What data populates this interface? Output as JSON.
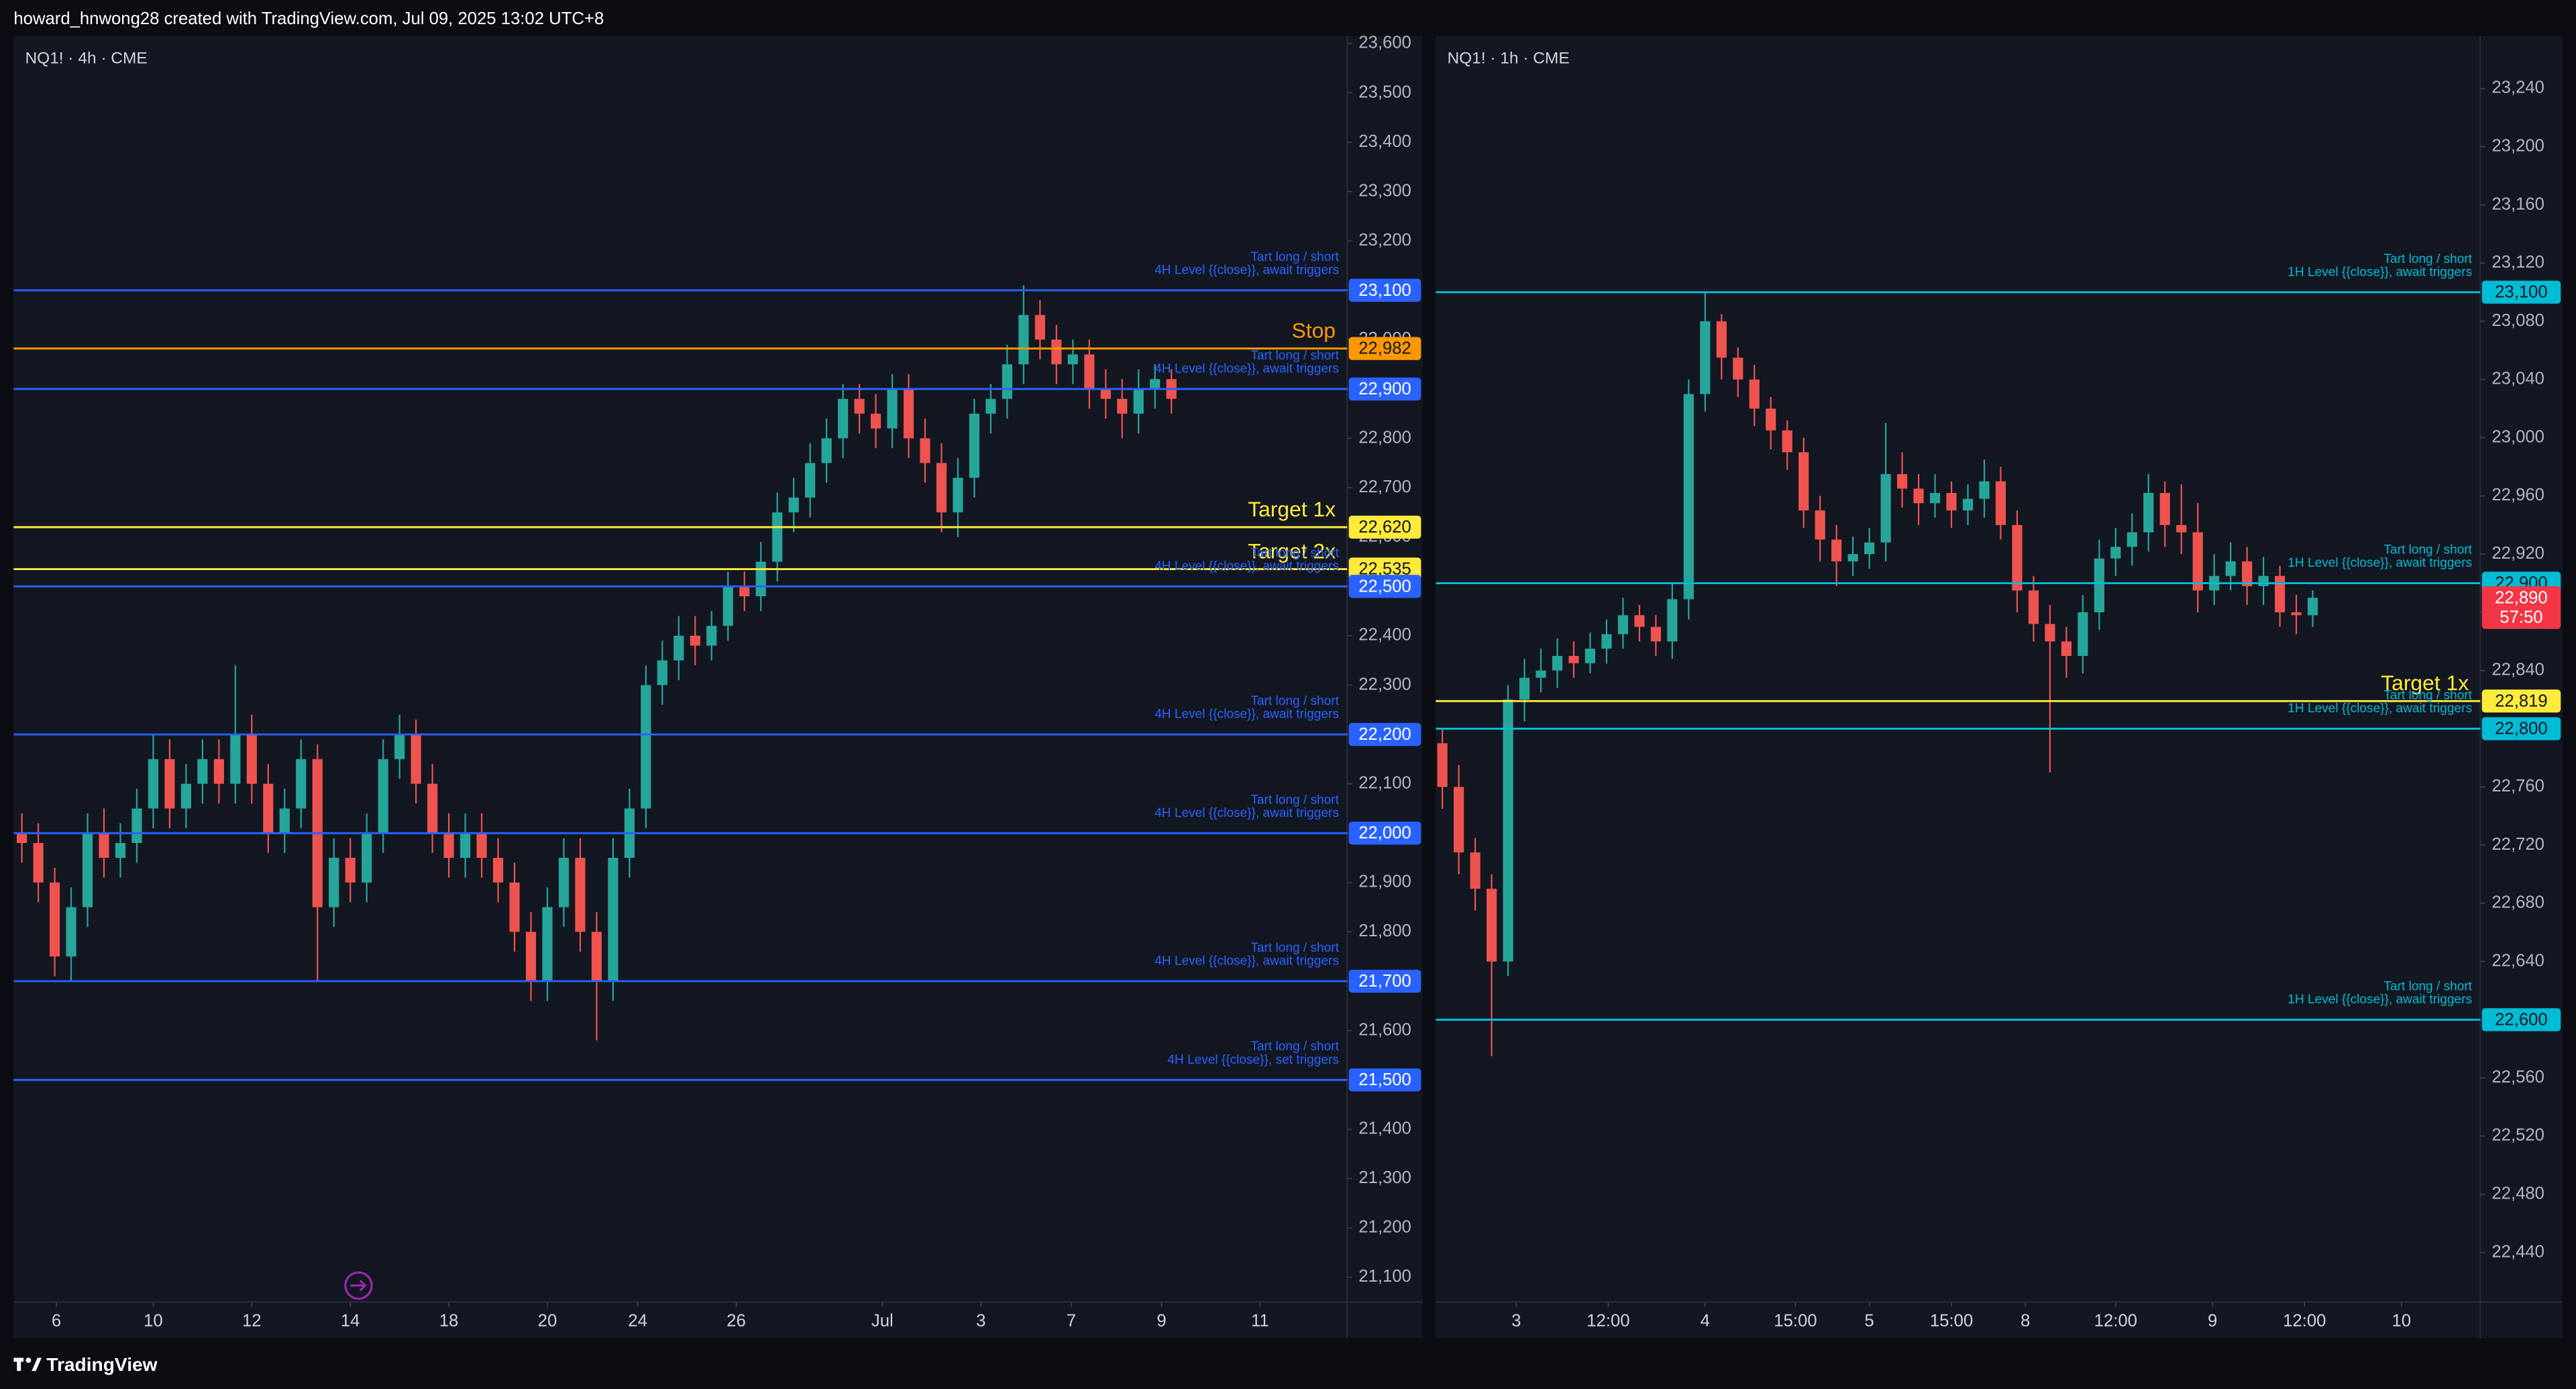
{
  "header": {
    "title": "howard_hnwong28 created with TradingView.com, Jul 09, 2025 13:02 UTC+8"
  },
  "footer": {
    "brand": "TradingView"
  },
  "chart_data": [
    {
      "type": "candlestick",
      "title": "NQ1! · 4h · CME",
      "up_color": "#26a69a",
      "down_color": "#ef5350",
      "ylim": [
        21050,
        23615
      ],
      "yticks": [
        {
          "value": 21100,
          "label": "21,100"
        },
        {
          "value": 21200,
          "label": "21,200"
        },
        {
          "value": 21300,
          "label": "21,300"
        },
        {
          "value": 21400,
          "label": "21,400"
        },
        {
          "value": 21500,
          "label": "21,500"
        },
        {
          "value": 21600,
          "label": "21,600"
        },
        {
          "value": 21700,
          "label": "21,700"
        },
        {
          "value": 21800,
          "label": "21,800"
        },
        {
          "value": 21900,
          "label": "21,900"
        },
        {
          "value": 22000,
          "label": "22,000"
        },
        {
          "value": 22100,
          "label": "22,100"
        },
        {
          "value": 22200,
          "label": "22,200"
        },
        {
          "value": 22300,
          "label": "22,300"
        },
        {
          "value": 22400,
          "label": "22,400"
        },
        {
          "value": 22500,
          "label": "22,500"
        },
        {
          "value": 22600,
          "label": "22,600"
        },
        {
          "value": 22700,
          "label": "22,700"
        },
        {
          "value": 22800,
          "label": "22,800"
        },
        {
          "value": 22900,
          "label": "22,900"
        },
        {
          "value": 23000,
          "label": "23,000"
        },
        {
          "value": 23100,
          "label": "23,100"
        },
        {
          "value": 23200,
          "label": "23,200"
        },
        {
          "value": 23300,
          "label": "23,300"
        },
        {
          "value": 23400,
          "label": "23,400"
        },
        {
          "value": 23500,
          "label": "23,500"
        },
        {
          "value": 23600,
          "label": "23,600"
        }
      ],
      "xlim": [
        -0.5,
        80.7
      ],
      "xticks": [
        {
          "value": 2.1,
          "label": "6"
        },
        {
          "value": 8,
          "label": "10"
        },
        {
          "value": 14,
          "label": "12"
        },
        {
          "value": 20,
          "label": "14"
        },
        {
          "value": 26,
          "label": "18"
        },
        {
          "value": 32,
          "label": "20"
        },
        {
          "value": 37.5,
          "label": "24"
        },
        {
          "value": 43.5,
          "label": "26"
        },
        {
          "value": 52.4,
          "label": "Jul"
        },
        {
          "value": 58.4,
          "label": "3"
        },
        {
          "value": 63.9,
          "label": "7"
        },
        {
          "value": 69.4,
          "label": "9"
        },
        {
          "value": 75.4,
          "label": "11"
        }
      ],
      "open": [
        22000,
        21980,
        21900,
        21750,
        21850,
        22000,
        21950,
        21980,
        22050,
        22150,
        22050,
        22100,
        22150,
        22100,
        22200,
        22100,
        22000,
        22050,
        22150,
        21850,
        21950,
        21900,
        22000,
        22150,
        22200,
        22100,
        22000,
        21950,
        22000,
        21950,
        21900,
        21800,
        21700,
        21850,
        21950,
        21800,
        21700,
        21950,
        22050,
        22300,
        22350,
        22400,
        22380,
        22420,
        22500,
        22480,
        22550,
        22650,
        22680,
        22750,
        22800,
        22880,
        22850,
        22820,
        22900,
        22800,
        22750,
        22650,
        22720,
        22850,
        22880,
        22950,
        23050,
        23000,
        22950,
        22970,
        22900,
        22880,
        22850,
        22900,
        22920
      ],
      "high": [
        22040,
        22020,
        21930,
        21890,
        22040,
        22050,
        22020,
        22090,
        22200,
        22190,
        22140,
        22190,
        22190,
        22340,
        22240,
        22140,
        22090,
        22190,
        22180,
        21990,
        21990,
        22040,
        22190,
        22240,
        22230,
        22140,
        22040,
        22040,
        22040,
        21990,
        21940,
        21840,
        21890,
        21990,
        21990,
        21840,
        21990,
        22090,
        22340,
        22390,
        22440,
        22440,
        22450,
        22530,
        22530,
        22590,
        22690,
        22720,
        22790,
        22840,
        22910,
        22910,
        22890,
        22930,
        22930,
        22840,
        22790,
        22760,
        22880,
        22910,
        22990,
        23110,
        23080,
        23030,
        23000,
        23000,
        22940,
        22920,
        22940,
        22950,
        22940
      ],
      "low": [
        21940,
        21860,
        21710,
        21700,
        21810,
        21910,
        21910,
        21940,
        22010,
        22010,
        22010,
        22060,
        22060,
        22060,
        22060,
        21960,
        21960,
        22010,
        21700,
        21810,
        21860,
        21860,
        21960,
        22110,
        22060,
        21960,
        21910,
        21910,
        21910,
        21860,
        21760,
        21660,
        21660,
        21810,
        21760,
        21580,
        21660,
        21910,
        22010,
        22260,
        22310,
        22340,
        22350,
        22390,
        22450,
        22450,
        22510,
        22610,
        22640,
        22710,
        22760,
        22810,
        22780,
        22780,
        22760,
        22710,
        22610,
        22600,
        22680,
        22810,
        22840,
        22910,
        22960,
        22910,
        22910,
        22860,
        22840,
        22800,
        22810,
        22860,
        22850
      ],
      "close": [
        21980,
        21900,
        21750,
        21850,
        22000,
        21950,
        21980,
        22050,
        22150,
        22050,
        22100,
        22150,
        22100,
        22200,
        22100,
        22000,
        22050,
        22150,
        21850,
        21950,
        21900,
        22000,
        22150,
        22200,
        22100,
        22000,
        21950,
        22000,
        21950,
        21900,
        21800,
        21700,
        21850,
        21950,
        21800,
        21700,
        21950,
        22050,
        22300,
        22350,
        22400,
        22380,
        22420,
        22500,
        22480,
        22550,
        22650,
        22680,
        22750,
        22800,
        22880,
        22850,
        22820,
        22900,
        22800,
        22750,
        22650,
        22720,
        22850,
        22880,
        22950,
        23050,
        23000,
        22950,
        22970,
        22900,
        22880,
        22850,
        22900,
        22920,
        22880
      ],
      "levels": [
        {
          "value": 23100,
          "label": "23,100",
          "color": "#2962ff",
          "text": [
            "Tart long / short",
            "4H Level {{close}}, await triggers"
          ]
        },
        {
          "value": 22982,
          "label": "22,982",
          "color": "#ff9800",
          "name": "Stop"
        },
        {
          "value": 22900,
          "label": "22,900",
          "color": "#2962ff",
          "text": [
            "Tart long / short",
            "4H Level {{close}}, await triggers"
          ]
        },
        {
          "value": 22620,
          "label": "22,620",
          "color": "#ffeb3b",
          "name": "Target 1x"
        },
        {
          "value": 22535,
          "label": "22,535",
          "color": "#ffeb3b",
          "name": "Target 2x"
        },
        {
          "value": 22500,
          "label": "22,500",
          "color": "#2962ff",
          "text": [
            "Tart long / short",
            "4H Level {{close}}, await triggers"
          ]
        },
        {
          "value": 22200,
          "label": "22,200",
          "color": "#2962ff",
          "text": [
            "Tart long / short",
            "4H Level {{close}}, await triggers"
          ]
        },
        {
          "value": 22000,
          "label": "22,000",
          "color": "#2962ff",
          "text": [
            "Tart long / short",
            "4H Level {{close}}, await triggers"
          ]
        },
        {
          "value": 21700,
          "label": "21,700",
          "color": "#2962ff",
          "text": [
            "Tart long / short",
            "4H Level {{close}}, await triggers"
          ]
        },
        {
          "value": 21500,
          "label": "21,500",
          "color": "#2962ff",
          "text": [
            "Tart long / short",
            "4H Level {{close}}, set triggers"
          ]
        }
      ]
    },
    {
      "type": "candlestick",
      "title": "NQ1! · 1h · CME",
      "up_color": "#26a69a",
      "down_color": "#ef5350",
      "ylim": [
        22406,
        23276
      ],
      "yticks": [
        {
          "value": 22440,
          "label": "22,440"
        },
        {
          "value": 22480,
          "label": "22,480"
        },
        {
          "value": 22520,
          "label": "22,520"
        },
        {
          "value": 22560,
          "label": "22,560"
        },
        {
          "value": 22600,
          "label": "22,600"
        },
        {
          "value": 22640,
          "label": "22,640"
        },
        {
          "value": 22680,
          "label": "22,680"
        },
        {
          "value": 22720,
          "label": "22,720"
        },
        {
          "value": 22760,
          "label": "22,760"
        },
        {
          "value": 22800,
          "label": "22,800"
        },
        {
          "value": 22840,
          "label": "22,840"
        },
        {
          "value": 22880,
          "label": "22,880"
        },
        {
          "value": 22920,
          "label": "22,920"
        },
        {
          "value": 22960,
          "label": "22,960"
        },
        {
          "value": 23000,
          "label": "23,000"
        },
        {
          "value": 23040,
          "label": "23,040"
        },
        {
          "value": 23080,
          "label": "23,080"
        },
        {
          "value": 23120,
          "label": "23,120"
        },
        {
          "value": 23160,
          "label": "23,160"
        },
        {
          "value": 23200,
          "label": "23,200"
        },
        {
          "value": 23240,
          "label": "23,240"
        }
      ],
      "xlim": [
        -0.4,
        63.2
      ],
      "xticks": [
        {
          "value": 4.5,
          "label": "3"
        },
        {
          "value": 10.1,
          "label": "12:00"
        },
        {
          "value": 16,
          "label": "4"
        },
        {
          "value": 21.5,
          "label": "15:00"
        },
        {
          "value": 26,
          "label": "5"
        },
        {
          "value": 31,
          "label": "15:00"
        },
        {
          "value": 35.5,
          "label": "8"
        },
        {
          "value": 41,
          "label": "12:00"
        },
        {
          "value": 46.9,
          "label": "9"
        },
        {
          "value": 52.5,
          "label": "12:00"
        },
        {
          "value": 58.4,
          "label": "10"
        }
      ],
      "open": [
        22790,
        22760,
        22715,
        22690,
        22640,
        22820,
        22835,
        22840,
        22850,
        22845,
        22855,
        22865,
        22878,
        22870,
        22860,
        22889,
        23030,
        23080,
        23055,
        23040,
        23020,
        23005,
        22990,
        22950,
        22930,
        22915,
        22920,
        22928,
        22975,
        22965,
        22955,
        22962,
        22950,
        22958,
        22970,
        22940,
        22895,
        22872,
        22860,
        22850,
        22880,
        22917,
        22925,
        22935,
        22962,
        22940,
        22935,
        22895,
        22905,
        22915,
        22898,
        22905,
        22880,
        22878
      ],
      "high": [
        22800,
        22775,
        22725,
        22700,
        22830,
        22848,
        22855,
        22862,
        22860,
        22866,
        22875,
        22890,
        22885,
        22878,
        22900,
        23040,
        23100,
        23085,
        23062,
        23050,
        23028,
        23012,
        23000,
        22960,
        22940,
        22932,
        22938,
        23010,
        22990,
        22975,
        22975,
        22970,
        22968,
        22985,
        22980,
        22950,
        22905,
        22885,
        22870,
        22892,
        22930,
        22938,
        22948,
        22975,
        22970,
        22968,
        22955,
        22920,
        22928,
        22925,
        22918,
        22912,
        22892,
        22895
      ],
      "low": [
        22745,
        22700,
        22675,
        22575,
        22630,
        22805,
        22825,
        22828,
        22835,
        22838,
        22845,
        22855,
        22860,
        22850,
        22848,
        22875,
        23018,
        23040,
        23028,
        23008,
        22992,
        22978,
        22938,
        22915,
        22898,
        22905,
        22910,
        22915,
        22952,
        22940,
        22945,
        22938,
        22940,
        22945,
        22930,
        22880,
        22860,
        22770,
        22835,
        22838,
        22868,
        22905,
        22912,
        22922,
        22925,
        22920,
        22880,
        22885,
        22895,
        22885,
        22885,
        22870,
        22865,
        22870
      ],
      "close": [
        22760,
        22715,
        22690,
        22640,
        22820,
        22835,
        22840,
        22850,
        22845,
        22855,
        22865,
        22878,
        22870,
        22860,
        22889,
        23030,
        23080,
        23055,
        23040,
        23020,
        23005,
        22990,
        22950,
        22930,
        22915,
        22920,
        22928,
        22975,
        22965,
        22955,
        22962,
        22950,
        22958,
        22970,
        22940,
        22895,
        22872,
        22860,
        22850,
        22880,
        22917,
        22925,
        22935,
        22962,
        22940,
        22935,
        22895,
        22905,
        22915,
        22898,
        22905,
        22880,
        22878,
        22890
      ],
      "levels": [
        {
          "value": 23100,
          "label": "23,100",
          "color": "#00bcd4",
          "text": [
            "Tart long / short",
            "1H Level {{close}}, await triggers"
          ]
        },
        {
          "value": 22900,
          "label": "22,900",
          "color": "#00bcd4",
          "text": [
            "Tart long / short",
            "1H Level {{close}}, await triggers"
          ]
        },
        {
          "value": 22819,
          "label": "22,819",
          "color": "#ffeb3b",
          "name": "Target 1x"
        },
        {
          "value": 22800,
          "label": "22,800",
          "color": "#00bcd4",
          "text": [
            "Tart long / short",
            "1H Level {{close}}, await triggers"
          ]
        },
        {
          "value": 22600,
          "label": "22,600",
          "color": "#00bcd4",
          "text": [
            "Tart long / short",
            "1H Level {{close}}, await triggers"
          ]
        }
      ],
      "last_price": {
        "value": 22890,
        "label": "22,890",
        "countdown": "57:50",
        "color": "#f23645"
      }
    }
  ]
}
